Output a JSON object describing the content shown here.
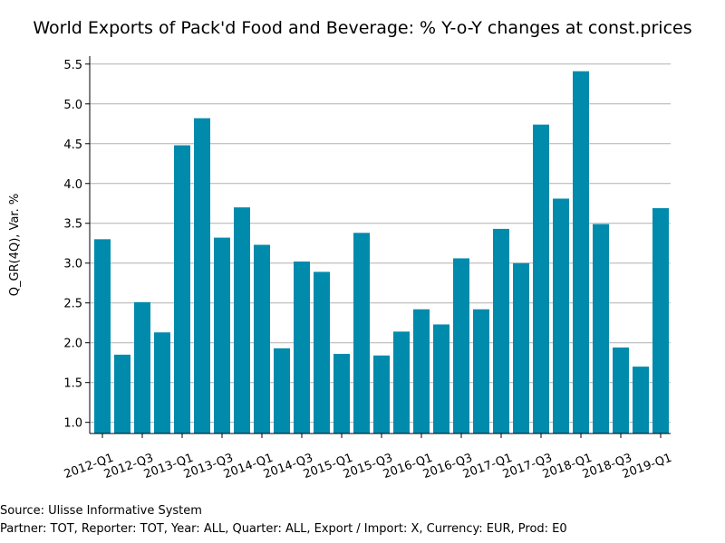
{
  "chart_data": {
    "type": "bar",
    "title": "World Exports of Pack'd Food and Beverage: % Y-o-Y changes at const.prices",
    "xlabel": "",
    "ylabel": "Q_GR(4Q), Var. %",
    "ylim": [
      0.86,
      5.6
    ],
    "yticks": [
      "1.0",
      "1.5",
      "2.0",
      "2.5",
      "3.0",
      "3.5",
      "4.0",
      "4.5",
      "5.0",
      "5.5"
    ],
    "grid": true,
    "bar_color": "#008bad",
    "categories": [
      "2012-Q1",
      "2012-Q2",
      "2012-Q3",
      "2012-Q4",
      "2013-Q1",
      "2013-Q2",
      "2013-Q3",
      "2013-Q4",
      "2014-Q1",
      "2014-Q2",
      "2014-Q3",
      "2014-Q4",
      "2015-Q1",
      "2015-Q2",
      "2015-Q3",
      "2015-Q4",
      "2016-Q1",
      "2016-Q2",
      "2016-Q3",
      "2016-Q4",
      "2017-Q1",
      "2017-Q2",
      "2017-Q3",
      "2017-Q4",
      "2018-Q1",
      "2018-Q2",
      "2018-Q3",
      "2018-Q4",
      "2019-Q1"
    ],
    "tick_labels": [
      "2012-Q1",
      "2012-Q3",
      "2013-Q1",
      "2013-Q3",
      "2014-Q1",
      "2014-Q3",
      "2015-Q1",
      "2015-Q3",
      "2016-Q1",
      "2016-Q3",
      "2017-Q1",
      "2017-Q3",
      "2018-Q1",
      "2018-Q3",
      "2019-Q1"
    ],
    "values": [
      3.3,
      1.85,
      2.51,
      2.13,
      4.48,
      4.82,
      3.32,
      3.7,
      3.23,
      1.93,
      3.02,
      2.89,
      1.86,
      3.38,
      1.84,
      2.14,
      2.42,
      2.23,
      3.06,
      2.42,
      3.43,
      3.0,
      4.74,
      3.81,
      5.41,
      3.49,
      1.94,
      1.7,
      3.69
    ]
  },
  "footer": {
    "source": "Source: Ulisse Informative System",
    "filters": "Partner: TOT, Reporter: TOT, Year: ALL, Quarter: ALL, Export / Import: X, Currency: EUR, Prod: E0"
  }
}
